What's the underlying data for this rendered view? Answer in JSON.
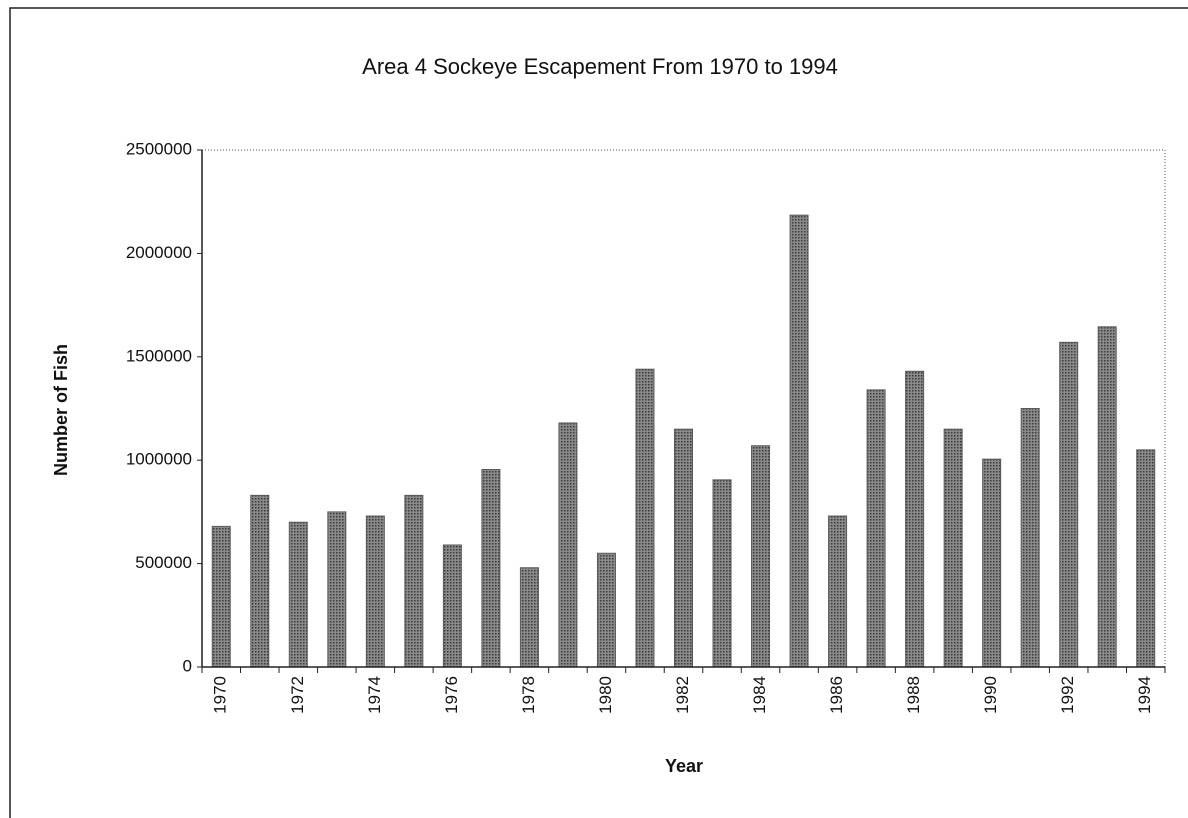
{
  "chart_data": {
    "type": "bar",
    "title": "Area 4 Sockeye Escapement From 1970 to 1994",
    "x_label": "Year",
    "y_label": "Number of Fish",
    "categories": [
      "1970",
      null,
      "1972",
      null,
      "1974",
      null,
      "1976",
      null,
      "1978",
      null,
      "1980",
      null,
      "1982",
      null,
      "1984",
      null,
      "1986",
      null,
      "1988",
      null,
      "1990",
      null,
      "1992",
      null,
      "1994"
    ],
    "values": [
      680000,
      830000,
      700000,
      750000,
      730000,
      830000,
      590000,
      955000,
      480000,
      1180000,
      550000,
      1440000,
      1150000,
      905000,
      1070000,
      2185000,
      730000,
      1340000,
      1430000,
      1150000,
      1005000,
      1250000,
      1570000,
      1645000,
      1050000
    ],
    "color": "#5a5a5a",
    "ylim": [
      0,
      2500000
    ],
    "yticks": [
      0,
      500000,
      1000000,
      1500000,
      2000000,
      2500000
    ],
    "grid": false
  }
}
